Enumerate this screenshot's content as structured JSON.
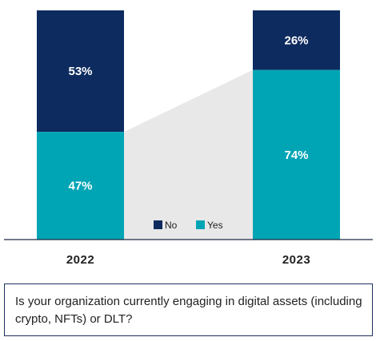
{
  "chart_data": {
    "type": "bar",
    "stacked": true,
    "percent": true,
    "categories": [
      "2022",
      "2023"
    ],
    "series": [
      {
        "name": "No",
        "values": [
          53,
          26
        ],
        "color": "#0d2b5e"
      },
      {
        "name": "Yes",
        "values": [
          47,
          74
        ],
        "color": "#00a5b5"
      }
    ],
    "value_labels": [
      [
        "53%",
        "26%"
      ],
      [
        "47%",
        "74%"
      ]
    ],
    "ylim": [
      0,
      100
    ],
    "legend_position": "bottom-center",
    "connector_color": "#e8e8e8",
    "grid": false
  },
  "question": "Is your organization currently engaging in digital assets (including crypto, NFTs) or DLT?"
}
